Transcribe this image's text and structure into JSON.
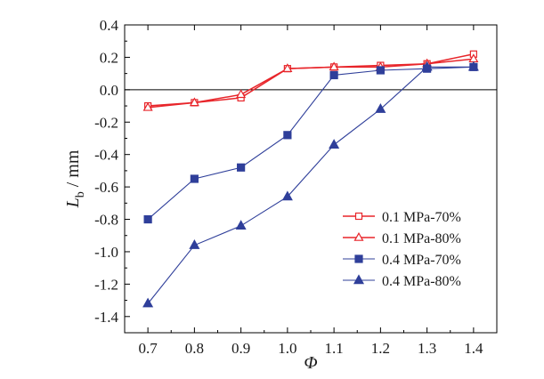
{
  "chart_data": {
    "type": "line",
    "x": [
      0.7,
      0.8,
      0.9,
      1.0,
      1.1,
      1.2,
      1.3,
      1.4
    ],
    "x_tick_labels": [
      "0.7",
      "0.8",
      "0.9",
      "1.0",
      "1.1",
      "1.2",
      "1.3",
      "1.4"
    ],
    "y_tick_values": [
      0.4,
      0.2,
      0.0,
      -0.2,
      -0.4,
      -0.6,
      -0.8,
      -1.0,
      -1.2,
      -1.4
    ],
    "y_tick_labels": [
      "0.4",
      "0.2",
      "0.0",
      "-0.2",
      "-0.4",
      "-0.6",
      "-0.8",
      "-1.0",
      "-1.2",
      "-1.4"
    ],
    "xlim": [
      0.65,
      1.45
    ],
    "ylim": [
      -1.5,
      0.4
    ],
    "xlabel": "Φ",
    "ylabel": {
      "main": "L",
      "sub": "b",
      "unit": " / mm"
    },
    "zero_line": true,
    "grid": false,
    "legend_position": "right",
    "series": [
      {
        "name": "0.1 MPa-70%",
        "color": "#e8252a",
        "marker": "open-square",
        "values": [
          -0.1,
          -0.08,
          -0.05,
          0.13,
          0.14,
          0.15,
          0.16,
          0.22
        ]
      },
      {
        "name": "0.1 MPa-80%",
        "color": "#e8252a",
        "marker": "open-triangle",
        "values": [
          -0.11,
          -0.08,
          -0.03,
          0.13,
          0.14,
          0.14,
          0.16,
          0.19
        ]
      },
      {
        "name": "0.4 MPa-70%",
        "color": "#2f3f9a",
        "marker": "filled-square",
        "values": [
          -0.8,
          -0.55,
          -0.48,
          -0.28,
          0.09,
          0.12,
          0.13,
          0.14
        ]
      },
      {
        "name": "0.4 MPa-80%",
        "color": "#2f3f9a",
        "marker": "filled-triangle",
        "values": [
          -1.32,
          -0.96,
          -0.84,
          -0.66,
          -0.34,
          -0.12,
          0.14,
          0.14
        ]
      }
    ]
  }
}
